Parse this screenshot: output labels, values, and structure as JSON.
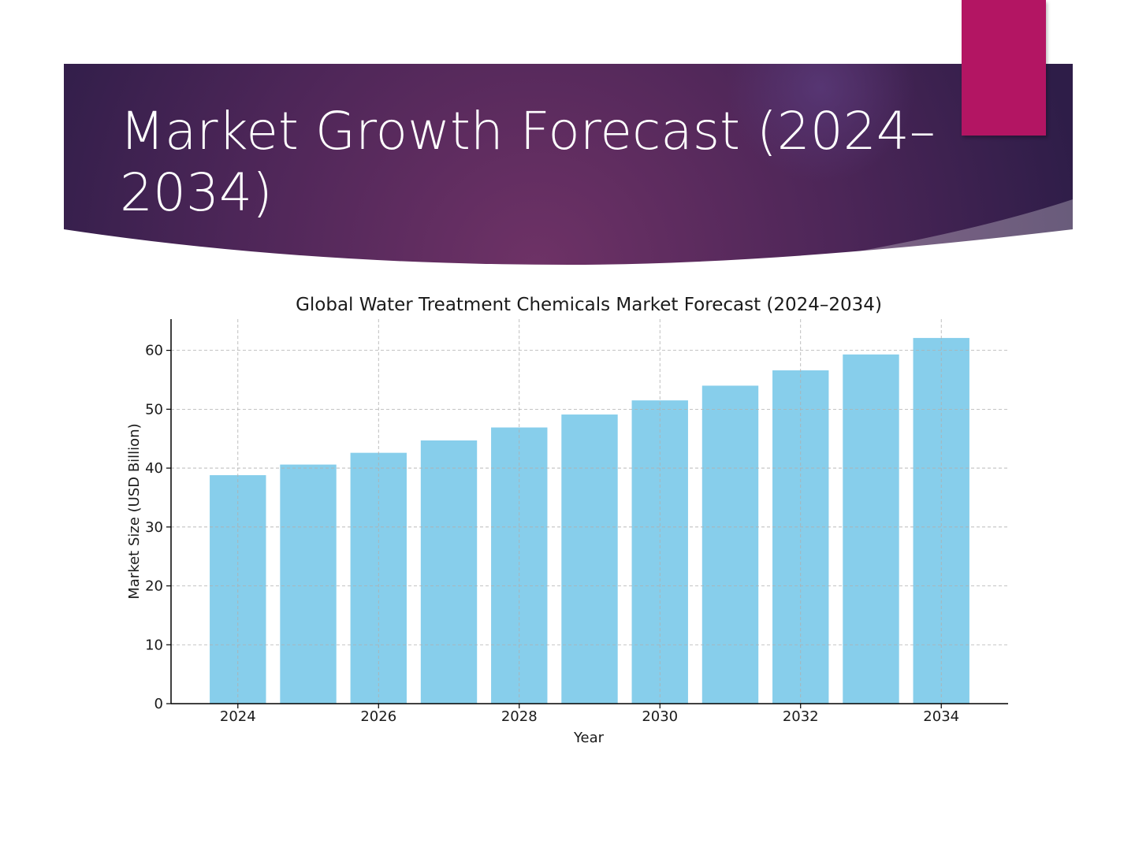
{
  "slide": {
    "title": "Market Growth Forecast (2024–2034)"
  },
  "colors": {
    "banner_dark": "#2f1f4c",
    "banner_mid": "#6b3163",
    "accent": "#b31563",
    "bar": "#87ceeb"
  },
  "chart_data": {
    "type": "bar",
    "title": "Global Water Treatment Chemicals Market Forecast (2024–2034)",
    "xlabel": "Year",
    "ylabel": "Market Size (USD Billion)",
    "categories": [
      2024,
      2025,
      2026,
      2027,
      2028,
      2029,
      2030,
      2031,
      2032,
      2033,
      2034
    ],
    "values": [
      38.8,
      40.6,
      42.6,
      44.7,
      46.9,
      49.1,
      51.5,
      54.0,
      56.6,
      59.3,
      62.1
    ],
    "x_tick_labels": [
      "2024",
      "2026",
      "2028",
      "2030",
      "2032",
      "2034"
    ],
    "y_tick_labels": [
      "0",
      "10",
      "20",
      "30",
      "40",
      "50",
      "60"
    ],
    "ylim": [
      0,
      65.3
    ],
    "xlim": [
      2023.05,
      2034.95
    ],
    "grid": true
  }
}
